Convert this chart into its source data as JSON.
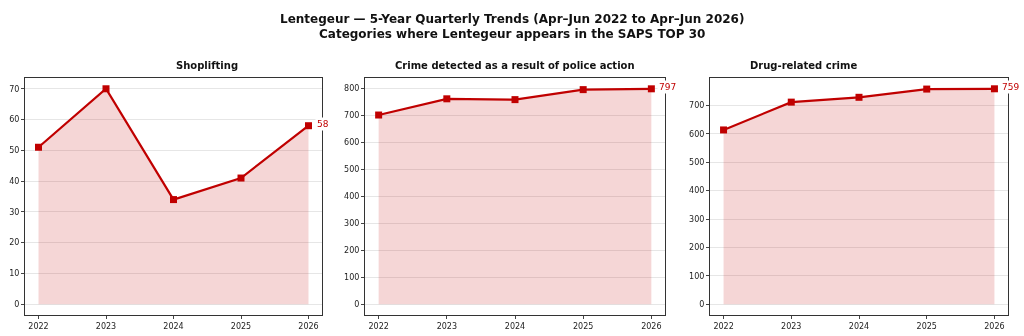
{
  "chart_data": [
    {
      "type": "area",
      "title": "Shoplifting",
      "annotations": [
        "Lentegeur — 5-Year Quarterly Trends (Apr–Jun 2022 to Apr–Jun 2026)",
        "Categories where Lentegeur appears in the SAPS TOP 30"
      ],
      "categories": [
        "2022",
        "2023",
        "2024",
        "2025",
        "2026"
      ],
      "values": [
        51,
        70,
        34,
        41,
        58
      ],
      "value_labels": [
        null,
        null,
        null,
        null,
        "58"
      ],
      "color": "#c00000",
      "ylim": [
        -3.5,
        73.5
      ],
      "yticks": [
        0,
        10,
        20,
        30,
        40,
        50,
        60,
        70
      ],
      "grid": "y",
      "marker": "square",
      "line_style": "solid"
    },
    {
      "type": "area",
      "title": "Crime detected as a result of police action",
      "categories": [
        "2022",
        "2023",
        "2024",
        "2025",
        "2026"
      ],
      "values": [
        700,
        760,
        757,
        794,
        797
      ],
      "value_labels": [
        null,
        null,
        null,
        null,
        "797"
      ],
      "color": "#c00000",
      "ylim": [
        -40,
        837
      ],
      "yticks": [
        0,
        100,
        200,
        300,
        400,
        500,
        600,
        700,
        800
      ],
      "grid": "y",
      "marker": "square",
      "line_style": "solid"
    },
    {
      "type": "area",
      "title": "Drug-related crime",
      "categories": [
        "2022",
        "2023",
        "2024",
        "2025",
        "2026"
      ],
      "values": [
        614,
        712,
        729,
        758,
        759
      ],
      "value_labels": [
        null,
        null,
        null,
        null,
        "759"
      ],
      "color": "#c00000",
      "ylim": [
        -38,
        797
      ],
      "yticks": [
        0,
        100,
        200,
        300,
        400,
        500,
        600,
        700
      ],
      "grid": "y",
      "marker": "square",
      "line_style": "solid"
    }
  ]
}
